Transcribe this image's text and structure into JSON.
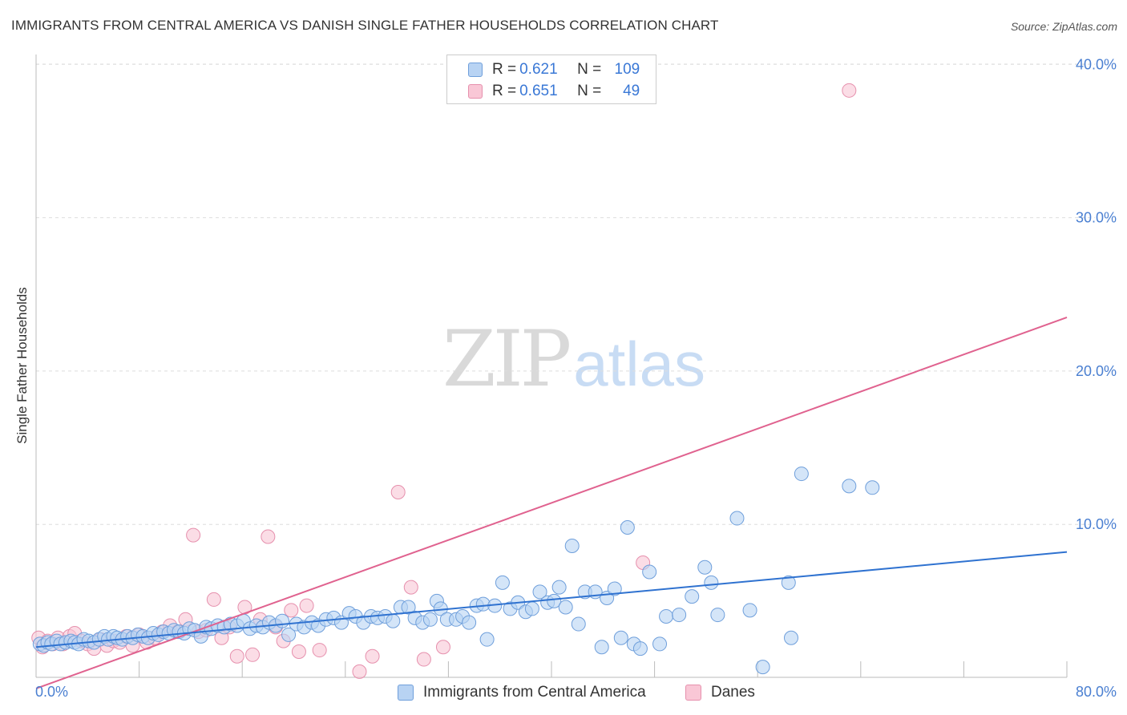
{
  "title": "IMMIGRANTS FROM CENTRAL AMERICA VS DANISH SINGLE FATHER HOUSEHOLDS CORRELATION CHART",
  "source": "Source: ZipAtlas.com",
  "watermark": {
    "zip": "ZIP",
    "atlas": "atlas"
  },
  "legend": {
    "rows": [
      {
        "r_label": "R =",
        "r_value": "0.621",
        "n_label": "N =",
        "n_value": "109"
      },
      {
        "r_label": "R =",
        "r_value": "0.651",
        "n_label": "N =",
        "n_value": "49"
      }
    ]
  },
  "bottom_legend": {
    "series1": "Immigrants from Central America",
    "series2": "Danes"
  },
  "colors": {
    "blue_fill": "#b8d3f3",
    "blue_stroke": "#6f9fdb",
    "blue_line": "#2f72d0",
    "pink_fill": "#f9c7d6",
    "pink_stroke": "#e690ad",
    "pink_line": "#e0628f",
    "tick_label": "#4a7fd1",
    "grid": "#dddddd"
  },
  "chart_data": {
    "type": "scatter",
    "title": "IMMIGRANTS FROM CENTRAL AMERICA VS DANISH SINGLE FATHER HOUSEHOLDS CORRELATION CHART",
    "xlabel": "",
    "ylabel": "Single Father Households",
    "xlim": [
      0,
      80
    ],
    "ylim": [
      0,
      40
    ],
    "x_tick_labels": [
      "0.0%",
      "80.0%"
    ],
    "y_ticks": [
      10,
      20,
      30,
      40
    ],
    "y_tick_labels": [
      "10.0%",
      "20.0%",
      "30.0%",
      "40.0%"
    ],
    "grid": true,
    "series": [
      {
        "name": "Immigrants from Central America",
        "color": "#b8d3f3",
        "points": [
          [
            0.3,
            2.2
          ],
          [
            0.6,
            2.1
          ],
          [
            0.9,
            2.3
          ],
          [
            1.2,
            2.2
          ],
          [
            1.6,
            2.4
          ],
          [
            1.9,
            2.2
          ],
          [
            2.3,
            2.3
          ],
          [
            2.7,
            2.4
          ],
          [
            3.0,
            2.3
          ],
          [
            3.3,
            2.2
          ],
          [
            3.7,
            2.5
          ],
          [
            4.1,
            2.4
          ],
          [
            4.5,
            2.3
          ],
          [
            4.9,
            2.5
          ],
          [
            5.3,
            2.7
          ],
          [
            5.6,
            2.5
          ],
          [
            6.0,
            2.7
          ],
          [
            6.3,
            2.6
          ],
          [
            6.7,
            2.5
          ],
          [
            7.1,
            2.7
          ],
          [
            7.5,
            2.6
          ],
          [
            7.9,
            2.8
          ],
          [
            8.3,
            2.7
          ],
          [
            8.7,
            2.6
          ],
          [
            9.1,
            2.9
          ],
          [
            9.5,
            2.8
          ],
          [
            9.9,
            3.0
          ],
          [
            10.3,
            2.9
          ],
          [
            10.7,
            3.1
          ],
          [
            11.1,
            3.0
          ],
          [
            11.5,
            2.9
          ],
          [
            11.9,
            3.2
          ],
          [
            12.3,
            3.1
          ],
          [
            12.8,
            2.7
          ],
          [
            13.2,
            3.3
          ],
          [
            13.6,
            3.2
          ],
          [
            14.1,
            3.4
          ],
          [
            14.6,
            3.3
          ],
          [
            15.1,
            3.5
          ],
          [
            15.6,
            3.4
          ],
          [
            16.1,
            3.7
          ],
          [
            16.6,
            3.2
          ],
          [
            17.1,
            3.4
          ],
          [
            17.6,
            3.3
          ],
          [
            18.1,
            3.6
          ],
          [
            18.6,
            3.4
          ],
          [
            19.1,
            3.7
          ],
          [
            19.6,
            2.8
          ],
          [
            20.2,
            3.5
          ],
          [
            20.8,
            3.3
          ],
          [
            21.4,
            3.6
          ],
          [
            21.9,
            3.4
          ],
          [
            22.5,
            3.8
          ],
          [
            23.1,
            3.9
          ],
          [
            23.7,
            3.6
          ],
          [
            24.3,
            4.2
          ],
          [
            24.8,
            4.0
          ],
          [
            25.4,
            3.6
          ],
          [
            26.0,
            4.0
          ],
          [
            26.5,
            3.9
          ],
          [
            27.1,
            4.0
          ],
          [
            27.7,
            3.7
          ],
          [
            28.3,
            4.6
          ],
          [
            28.9,
            4.6
          ],
          [
            29.4,
            3.9
          ],
          [
            30.0,
            3.6
          ],
          [
            30.6,
            3.8
          ],
          [
            31.1,
            5.0
          ],
          [
            31.4,
            4.5
          ],
          [
            31.9,
            3.8
          ],
          [
            32.6,
            3.8
          ],
          [
            33.1,
            4.0
          ],
          [
            33.6,
            3.6
          ],
          [
            34.2,
            4.7
          ],
          [
            34.7,
            4.8
          ],
          [
            35.0,
            2.5
          ],
          [
            35.6,
            4.7
          ],
          [
            36.2,
            6.2
          ],
          [
            36.8,
            4.5
          ],
          [
            37.4,
            4.9
          ],
          [
            38.0,
            4.3
          ],
          [
            38.5,
            4.5
          ],
          [
            39.1,
            5.6
          ],
          [
            39.7,
            4.9
          ],
          [
            40.2,
            5.0
          ],
          [
            40.6,
            5.9
          ],
          [
            41.1,
            4.6
          ],
          [
            41.6,
            8.6
          ],
          [
            42.1,
            3.5
          ],
          [
            42.6,
            5.6
          ],
          [
            43.4,
            5.6
          ],
          [
            43.9,
            2.0
          ],
          [
            44.3,
            5.2
          ],
          [
            44.9,
            5.8
          ],
          [
            45.4,
            2.6
          ],
          [
            45.9,
            9.8
          ],
          [
            46.4,
            2.2
          ],
          [
            46.9,
            1.9
          ],
          [
            47.6,
            6.9
          ],
          [
            48.4,
            2.2
          ],
          [
            48.9,
            4.0
          ],
          [
            49.9,
            4.1
          ],
          [
            50.9,
            5.3
          ],
          [
            51.9,
            7.2
          ],
          [
            52.4,
            6.2
          ],
          [
            52.9,
            4.1
          ],
          [
            54.4,
            10.4
          ],
          [
            55.4,
            4.4
          ],
          [
            56.4,
            0.7
          ],
          [
            58.4,
            6.2
          ],
          [
            58.6,
            2.6
          ],
          [
            59.4,
            13.3
          ],
          [
            63.1,
            12.5
          ],
          [
            64.9,
            12.4
          ]
        ],
        "trend": {
          "x": [
            0,
            80
          ],
          "y": [
            2.0,
            8.2
          ]
        }
      },
      {
        "name": "Danes",
        "color": "#f9c7d6",
        "points": [
          [
            0.2,
            2.6
          ],
          [
            0.5,
            2.0
          ],
          [
            0.9,
            2.4
          ],
          [
            1.3,
            2.2
          ],
          [
            1.7,
            2.6
          ],
          [
            2.1,
            2.2
          ],
          [
            2.6,
            2.7
          ],
          [
            3.0,
            2.9
          ],
          [
            3.5,
            2.4
          ],
          [
            4.0,
            2.2
          ],
          [
            4.5,
            1.9
          ],
          [
            5.0,
            2.5
          ],
          [
            5.5,
            2.1
          ],
          [
            6.0,
            2.4
          ],
          [
            6.5,
            2.3
          ],
          [
            7.0,
            2.7
          ],
          [
            7.5,
            2.1
          ],
          [
            8.0,
            2.8
          ],
          [
            8.6,
            2.3
          ],
          [
            9.2,
            2.6
          ],
          [
            9.8,
            3.0
          ],
          [
            10.4,
            3.4
          ],
          [
            11.0,
            3.0
          ],
          [
            11.6,
            3.8
          ],
          [
            12.2,
            9.3
          ],
          [
            12.6,
            3.0
          ],
          [
            13.2,
            3.1
          ],
          [
            13.8,
            5.1
          ],
          [
            14.4,
            2.6
          ],
          [
            15.0,
            3.3
          ],
          [
            15.6,
            1.4
          ],
          [
            16.2,
            4.6
          ],
          [
            16.8,
            1.5
          ],
          [
            17.4,
            3.8
          ],
          [
            18.0,
            9.2
          ],
          [
            18.6,
            3.3
          ],
          [
            19.2,
            2.4
          ],
          [
            19.8,
            4.4
          ],
          [
            20.4,
            1.7
          ],
          [
            21.0,
            4.7
          ],
          [
            22.0,
            1.8
          ],
          [
            25.1,
            0.4
          ],
          [
            26.1,
            1.4
          ],
          [
            28.1,
            12.1
          ],
          [
            29.1,
            5.9
          ],
          [
            30.1,
            1.2
          ],
          [
            31.6,
            2.0
          ],
          [
            47.1,
            7.5
          ],
          [
            63.1,
            38.3
          ]
        ],
        "trend": {
          "x": [
            0,
            80
          ],
          "y": [
            -0.7,
            23.5
          ]
        }
      }
    ]
  }
}
